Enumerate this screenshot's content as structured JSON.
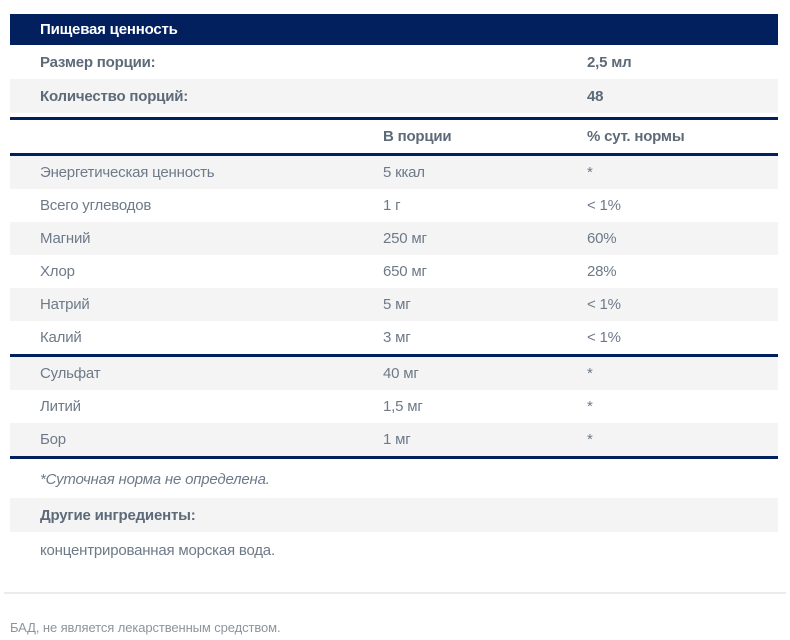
{
  "title_bar": {
    "title": "Пищевая ценность"
  },
  "serving": {
    "rows": [
      {
        "label": "Размер порции:",
        "value": "2,5 мл"
      },
      {
        "label": "Количество порций:",
        "value": "48"
      }
    ]
  },
  "columns": {
    "amount": "В порции",
    "dv": "% сут. нормы"
  },
  "nutrients_main": [
    {
      "name": "Энергетическая ценность",
      "amount": "5 ккал",
      "dv": "*"
    },
    {
      "name": "Всего углеводов",
      "amount": "1 г",
      "dv": "< 1%"
    },
    {
      "name": "Магний",
      "amount": "250 мг",
      "dv": "60%"
    },
    {
      "name": "Хлор",
      "amount": "650 мг",
      "dv": "28%"
    },
    {
      "name": "Натрий",
      "amount": "5 мг",
      "dv": "< 1%"
    },
    {
      "name": "Калий",
      "amount": "3 мг",
      "dv": "< 1%"
    }
  ],
  "nutrients_trace": [
    {
      "name": "Сульфат",
      "amount": "40 мг",
      "dv": "*"
    },
    {
      "name": "Литий",
      "amount": "1,5 мг",
      "dv": "*"
    },
    {
      "name": "Бор",
      "amount": "1 мг",
      "dv": "*"
    }
  ],
  "footnote": "*Суточная норма не определена.",
  "other_ingredients": {
    "label": "Другие ингредиенты:",
    "value": "концентрированная морская вода."
  },
  "disclaimer": "БАД, не является лекарственным средством.",
  "colors": {
    "navy": "#02205e",
    "stripe_gray": "#f4f4f5",
    "label_text": "#5d6a78",
    "value_text": "#6e7a88",
    "muted_text": "#8d949d",
    "divider": "#ebebeb"
  }
}
